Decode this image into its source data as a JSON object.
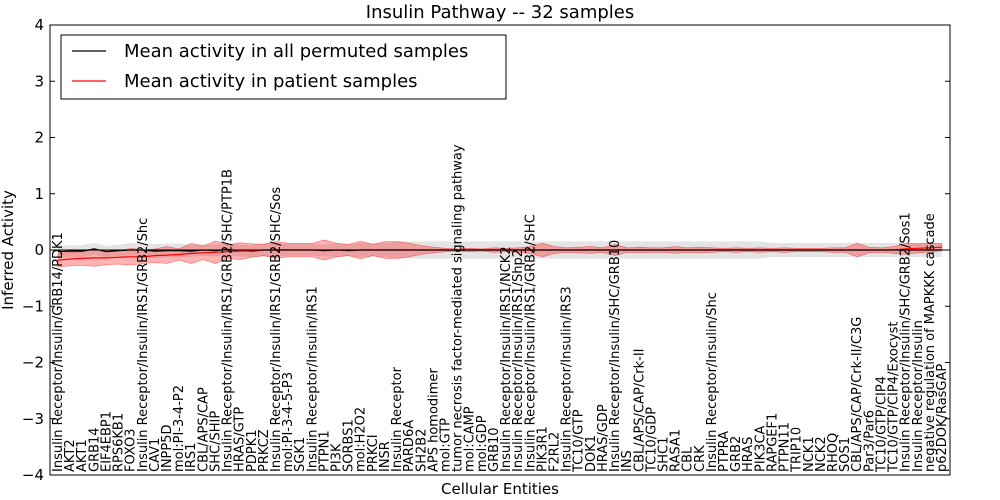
{
  "chart_data": {
    "type": "line",
    "title": "Insulin Pathway -- 32 samples",
    "xlabel": "Cellular Entities",
    "ylabel": "Inferred Activity",
    "ylim": [
      -4,
      4
    ],
    "yticks": [
      -4,
      -3,
      -2,
      -1,
      0,
      1,
      2,
      3,
      4
    ],
    "grid": false,
    "legend_position": "top-left",
    "categories": [
      "Insulin Receptor/Insulin/GRB14/PDK1",
      "AKT2",
      "AKT1",
      "GRB14",
      "EIF4EBP1",
      "RPS6KB1",
      "FOXO3",
      "Insulin Receptor/Insulin/IRS1/GRB2/Shc",
      "CAV1",
      "INPP5D",
      "mol:PI-3-4-P2",
      "IRS1",
      "CBL/APS/CAP",
      "SHC/SHIP",
      "Insulin Receptor/Insulin/IRS1/GRB2/SHC/PTP1B",
      "HRAS/GTP",
      "PDPK1",
      "PRKCZ",
      "Insulin Receptor/Insulin/IRS1/GRB2/SHC/Sos",
      "mol:PI-3-4-5-P3",
      "SGK1",
      "Insulin Receptor/Insulin/IRS1",
      "PTPN1",
      "PI3K",
      "SORBS1",
      "mol:H2O2",
      "PRKCI",
      "INSR",
      "Insulin Receptor",
      "PARD6A",
      "SH2B2",
      "APS homodimer",
      "mol:GTP",
      "tumor necrosis factor-mediated signaling pathway",
      "mol:CAMP",
      "mol:GDP",
      "GRB10",
      "Insulin Receptor/Insulin/IRS1/NCK2",
      "Insulin Receptor/Insulin/IRS1/Shp2",
      "Insulin Receptor/Insulin/IRS1/GRB2/SHC",
      "PIK3R1",
      "F2RL2",
      "Insulin Receptor/Insulin/IRS3",
      "TC10/GTP",
      "DOK1",
      "HRAS/GDP",
      "Insulin Receptor/Insulin/SHC/GRB10",
      "INS",
      "CBL/APS/CAP/Crk-II",
      "TC10/GDP",
      "SHC1",
      "RASA1",
      "CBL",
      "CRK",
      "Insulin Receptor/Insulin/Shc",
      "PTPRA",
      "GRB2",
      "HRAS",
      "PIK3CA",
      "RAPGEF1",
      "PTPN11",
      "TRIP10",
      "NCK1",
      "NCK2",
      "RHOQ",
      "SOS1",
      "CBL/APS/CAP/Crk-II/C3G",
      "Par3/Par6",
      "TC10/GTP/CIP4",
      "TC10/GTP/CIP4/Exocyst",
      "Insulin Receptor/Insulin/SHC/GRB2/Sos1",
      "Insulin Receptor/Insulin",
      "negative regulation of MAPKKK cascade",
      "p62DOK/RasGAP"
    ],
    "series": [
      {
        "name": "Mean activity in all permuted samples",
        "color": "#000000",
        "values": [
          -0.03,
          -0.02,
          -0.02,
          0.02,
          -0.03,
          -0.01,
          0.0,
          0.0,
          -0.02,
          -0.01,
          -0.01,
          -0.02,
          0.0,
          -0.01,
          0.01,
          -0.01,
          -0.02,
          0.0,
          0.0,
          0.0,
          0.0,
          0.0,
          -0.01,
          0.0,
          -0.01,
          0.0,
          0.0,
          0.0,
          0.0,
          0.0,
          0.0,
          0.0,
          0.0,
          0.0,
          0.0,
          0.0,
          0.0,
          0.0,
          0.0,
          0.0,
          0.0,
          0.0,
          0.0,
          0.0,
          0.0,
          0.0,
          0.0,
          0.0,
          0.0,
          0.0,
          0.0,
          0.0,
          0.0,
          0.0,
          0.0,
          0.0,
          0.0,
          0.0,
          0.0,
          0.0,
          0.0,
          0.0,
          0.0,
          0.0,
          0.0,
          0.0,
          0.0,
          0.0,
          0.0,
          0.0,
          0.0,
          0.0,
          0.0,
          0.0
        ],
        "band": [
          0.1,
          0.1,
          0.1,
          0.1,
          0.1,
          0.1,
          0.12,
          0.12,
          0.12,
          0.12,
          0.12,
          0.1,
          0.1,
          0.1,
          0.1,
          0.1,
          0.1,
          0.12,
          0.12,
          0.1,
          0.1,
          0.1,
          0.1,
          0.12,
          0.1,
          0.12,
          0.12,
          0.12,
          0.15,
          0.15,
          0.15,
          0.15,
          0.15,
          0.15,
          0.15,
          0.15,
          0.15,
          0.15,
          0.15,
          0.15,
          0.15,
          0.15,
          0.15,
          0.15,
          0.15,
          0.15,
          0.15,
          0.15,
          0.15,
          0.15,
          0.15,
          0.15,
          0.15,
          0.15,
          0.15,
          0.15,
          0.15,
          0.15,
          0.15,
          0.12,
          0.12,
          0.12,
          0.12,
          0.12,
          0.12,
          0.12,
          0.12,
          0.12,
          0.12,
          0.12,
          0.12,
          0.12,
          0.12,
          0.12
        ]
      },
      {
        "name": "Mean activity in patient samples",
        "color": "#ff0000",
        "values": [
          -0.18,
          -0.16,
          -0.15,
          -0.14,
          -0.14,
          -0.13,
          -0.12,
          -0.12,
          -0.1,
          -0.09,
          -0.08,
          -0.06,
          -0.05,
          -0.04,
          -0.03,
          -0.02,
          -0.01,
          0.0,
          0.0,
          0.0,
          0.0,
          0.0,
          0.0,
          0.0,
          0.0,
          0.0,
          0.0,
          0.0,
          0.0,
          0.0,
          0.0,
          0.0,
          0.0,
          0.0,
          0.0,
          0.0,
          0.0,
          0.0,
          0.0,
          0.0,
          0.0,
          0.0,
          0.0,
          0.0,
          0.0,
          0.0,
          0.0,
          0.0,
          0.0,
          0.0,
          0.0,
          0.0,
          0.0,
          0.0,
          0.0,
          0.0,
          0.0,
          0.0,
          0.0,
          0.0,
          0.0,
          0.0,
          0.0,
          0.0,
          0.0,
          0.0,
          0.0,
          0.0,
          0.0,
          0.0,
          0.02,
          0.03,
          0.04,
          0.05
        ],
        "band": [
          0.12,
          0.12,
          0.12,
          0.15,
          0.12,
          0.12,
          0.15,
          0.12,
          0.12,
          0.15,
          0.1,
          0.18,
          0.12,
          0.2,
          0.12,
          0.15,
          0.12,
          0.1,
          0.15,
          0.12,
          0.12,
          0.12,
          0.18,
          0.12,
          0.1,
          0.16,
          0.1,
          0.15,
          0.15,
          0.12,
          0.08,
          0.05,
          0.03,
          0.02,
          0.03,
          0.02,
          0.04,
          0.03,
          0.04,
          0.06,
          0.12,
          0.06,
          0.04,
          0.05,
          0.06,
          0.04,
          0.1,
          0.04,
          0.05,
          0.04,
          0.04,
          0.06,
          0.04,
          0.05,
          0.04,
          0.03,
          0.04,
          0.03,
          0.04,
          0.03,
          0.04,
          0.03,
          0.03,
          0.03,
          0.04,
          0.04,
          0.12,
          0.05,
          0.04,
          0.06,
          0.1,
          0.08,
          0.08,
          0.06
        ]
      }
    ]
  }
}
